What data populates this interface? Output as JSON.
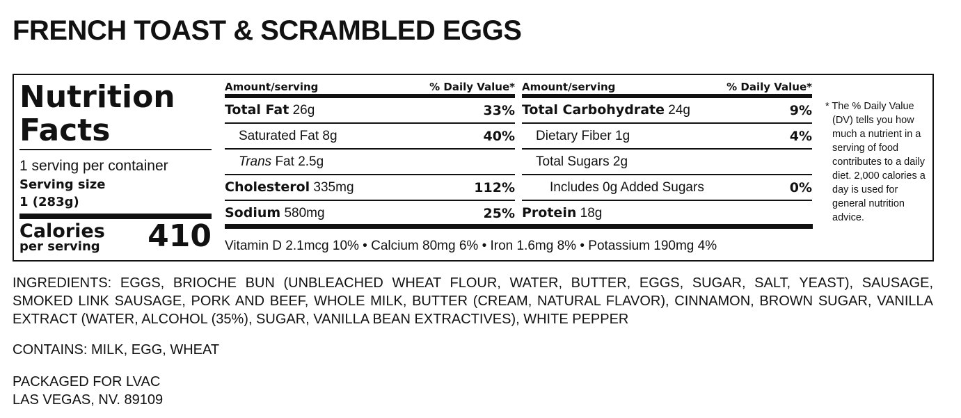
{
  "title": "FRENCH TOAST & SCRAMBLED EGGS",
  "facts": {
    "heading": [
      "Nutrition",
      "Facts"
    ],
    "servings": "1 serving per container",
    "serving_size_label": "Serving size",
    "serving_size": "1 (283g)",
    "calories_label": "Calories",
    "calories_sub": "per serving",
    "calories": 410,
    "columns": [
      {
        "amount_header": "Amount/serving",
        "dv_header": "% Daily Value*",
        "rows": [
          {
            "level": 0,
            "name": "Total Fat",
            "amount": "26g",
            "dv": "33%"
          },
          {
            "level": 1,
            "name": "Saturated Fat",
            "amount": "8g",
            "dv": "40%"
          },
          {
            "level": 1,
            "italic": "Trans",
            "name": "Fat",
            "amount": "2.5g"
          },
          {
            "level": 0,
            "name": "Cholesterol",
            "amount": "335mg",
            "dv": "112%"
          },
          {
            "level": 0,
            "name": "Sodium",
            "amount": "580mg",
            "dv": "25%"
          }
        ]
      },
      {
        "amount_header": "Amount/serving",
        "dv_header": "% Daily Value*",
        "rows": [
          {
            "level": 0,
            "name": "Total Carbohydrate",
            "amount": "24g",
            "dv": "9%"
          },
          {
            "level": 1,
            "name": "Dietary Fiber",
            "amount": "1g",
            "dv": "4%"
          },
          {
            "level": 1,
            "name": "Total Sugars",
            "amount": "2g"
          },
          {
            "level": 2,
            "name": "Includes 0g Added Sugars",
            "dv": "0%"
          },
          {
            "level": 0,
            "name": "Protein",
            "amount": "18g"
          }
        ]
      }
    ],
    "vitamins": "Vitamin D 2.1mcg 10% • Calcium 80mg 6% • Iron 1.6mg 8% • Potassium 190mg 4%",
    "footnote": "* The % Daily Value (DV) tells you how much a nutrient in a serving of food contributes to a daily diet. 2,000 calories a day is used for general nutrition advice."
  },
  "ingredients": "INGREDIENTS: EGGS, BRIOCHE BUN (UNBLEACHED WHEAT FLOUR, WATER, BUTTER, EGGS, SUGAR, SALT, YEAST), SAUSAGE, SMOKED LINK SAUSAGE, PORK AND BEEF, WHOLE MILK, BUTTER (CREAM, NATURAL FLAVOR), CINNAMON, BROWN SUGAR, VANILLA EXTRACT (WATER, ALCOHOL (35%), SUGAR, VANILLA BEAN EXTRACTIVES), WHITE PEPPER",
  "contains": "CONTAINS: MILK, EGG, WHEAT",
  "packaged": [
    "PACKAGED FOR LVAC",
    "LAS VEGAS, NV. 89109"
  ]
}
